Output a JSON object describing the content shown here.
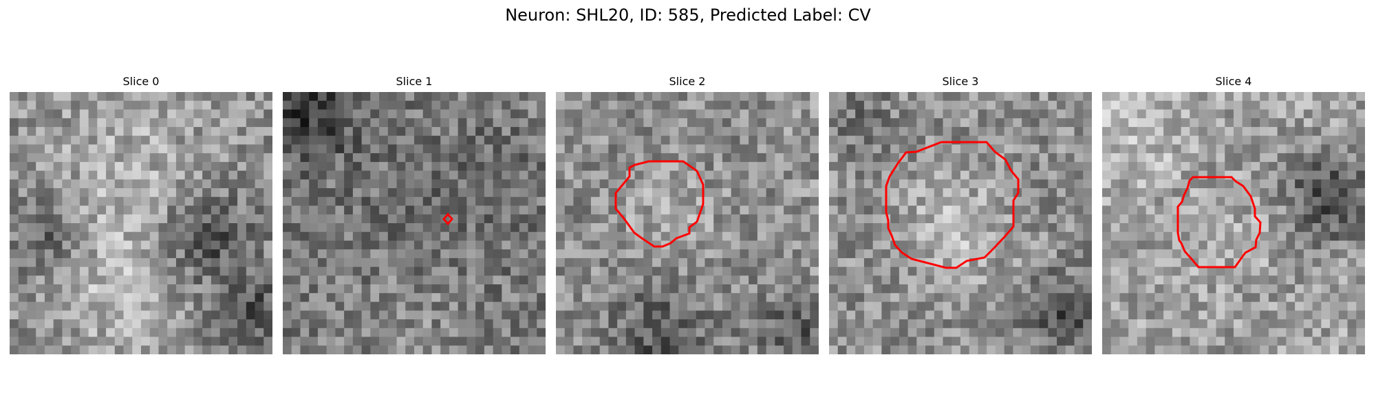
{
  "figure": {
    "title": "Neuron: SHL20, ID: 585, Predicted Label: CV"
  },
  "panels": [
    {
      "title": "Slice 0",
      "contour": "none"
    },
    {
      "title": "Slice 1",
      "contour": "small-diamond"
    },
    {
      "title": "Slice 2",
      "contour": "medium-octagon"
    },
    {
      "title": "Slice 3",
      "contour": "large-irregular-polygon"
    },
    {
      "title": "Slice 4",
      "contour": "medium-octagon"
    }
  ],
  "image": {
    "colormap": "grayscale",
    "grid": "30x30 pixel patches"
  },
  "colors": {
    "contour": "#ff0000",
    "background": "#ffffff",
    "text": "#000000"
  }
}
